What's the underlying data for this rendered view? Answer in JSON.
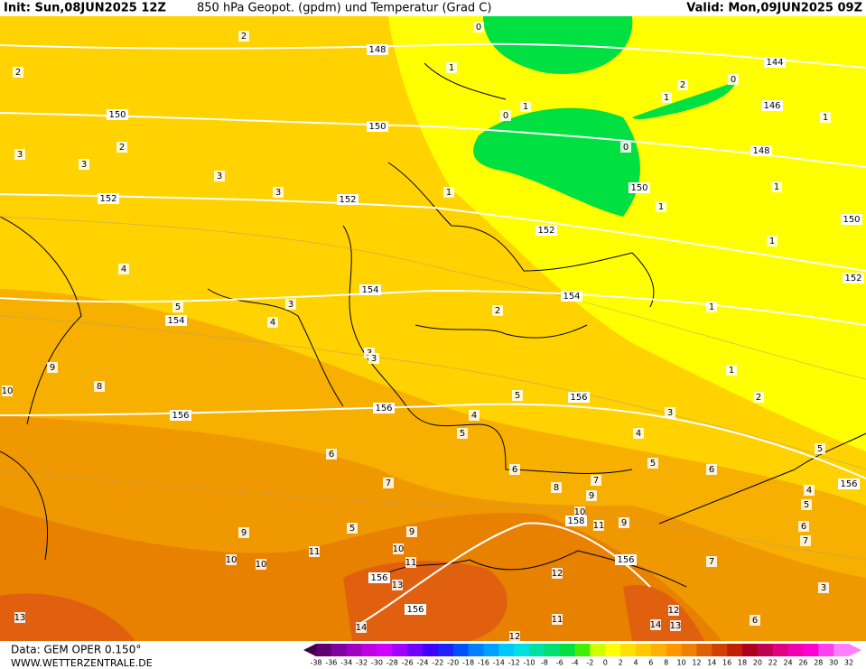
{
  "header": {
    "init": "Init: Sun,08JUN2025 12Z",
    "title": "850 hPa Geopot. (gpdm) und Temperatur (Grad C)",
    "valid": "Valid: Mon,09JUN2025 09Z"
  },
  "footer": {
    "data": "Data: GEM OPER 0.150°",
    "site": "WWW.WETTERZENTRALE.DE"
  },
  "colorbar": {
    "labels": [
      "-38",
      "-36",
      "-34",
      "-32",
      "-30",
      "-28",
      "-26",
      "-24",
      "-22",
      "-20",
      "-18",
      "-16",
      "-14",
      "-12",
      "-10",
      "-8",
      "-6",
      "-4",
      "-2",
      "0",
      "2",
      "4",
      "6",
      "8",
      "10",
      "12",
      "14",
      "16",
      "18",
      "20",
      "22",
      "24",
      "26",
      "28",
      "30",
      "32"
    ]
  },
  "geopotential": {
    "labels": [
      "144",
      "146",
      "148",
      "150",
      "152",
      "154",
      "156",
      "158"
    ]
  },
  "temperature": {
    "labels": [
      "0",
      "1",
      "2",
      "3",
      "4",
      "5",
      "6",
      "7",
      "8",
      "9",
      "10",
      "11",
      "12",
      "13",
      "14"
    ]
  }
}
